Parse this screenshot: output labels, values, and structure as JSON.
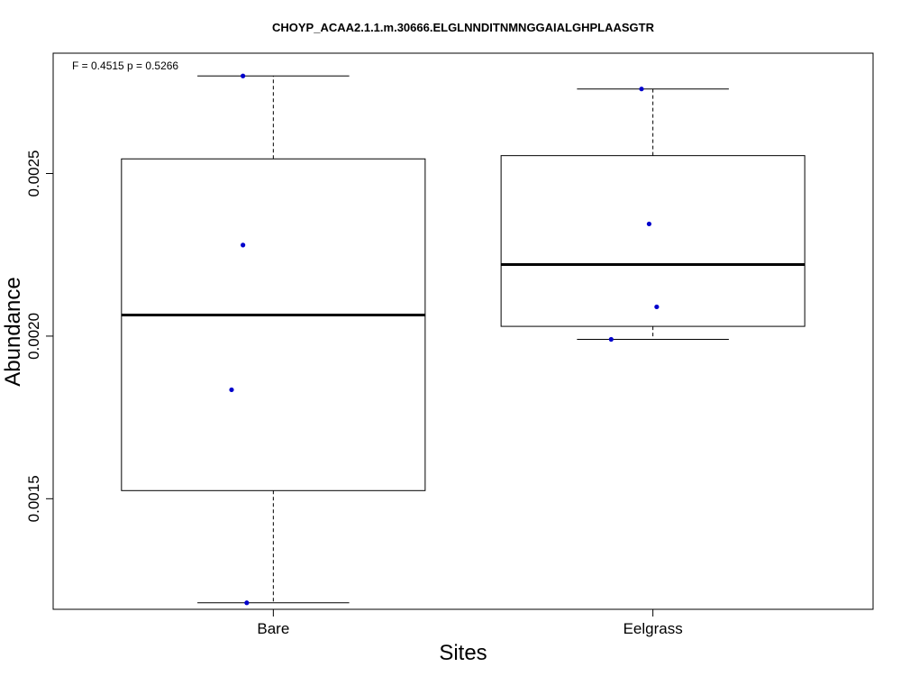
{
  "chart_data": {
    "type": "boxplot",
    "title": "CHOYP_ACAA2.1.1.m.30666.ELGLNNDITNMNGGAIALGHPLAASGTR",
    "annotation": "F = 0.4515 p = 0.5266",
    "xlabel": "Sites",
    "ylabel": "Abundance",
    "ylim": [
      0.00116,
      0.00287
    ],
    "yticks": [
      0.0015,
      0.002,
      0.0025
    ],
    "ytick_labels": [
      "0.0015",
      "0.0020",
      "0.0025"
    ],
    "categories": [
      "Bare",
      "Eelgrass"
    ],
    "boxes": [
      {
        "name": "Bare",
        "whisker_low": 0.00118,
        "q1": 0.001525,
        "median": 0.002065,
        "q3": 0.002545,
        "whisker_high": 0.0028
      },
      {
        "name": "Eelgrass",
        "whisker_low": 0.00199,
        "q1": 0.00203,
        "median": 0.00222,
        "q3": 0.002555,
        "whisker_high": 0.00276
      }
    ],
    "points": [
      {
        "category": "Bare",
        "jitter": -0.08,
        "y": 0.0028
      },
      {
        "category": "Bare",
        "jitter": -0.08,
        "y": 0.00228
      },
      {
        "category": "Bare",
        "jitter": -0.11,
        "y": 0.001835
      },
      {
        "category": "Bare",
        "jitter": -0.07,
        "y": 0.00118
      },
      {
        "category": "Eelgrass",
        "jitter": -0.03,
        "y": 0.00276
      },
      {
        "category": "Eelgrass",
        "jitter": -0.01,
        "y": 0.002345
      },
      {
        "category": "Eelgrass",
        "jitter": 0.01,
        "y": 0.00209
      },
      {
        "category": "Eelgrass",
        "jitter": -0.11,
        "y": 0.00199
      }
    ],
    "point_color": "#0000cc",
    "grid": false,
    "legend": "none"
  }
}
